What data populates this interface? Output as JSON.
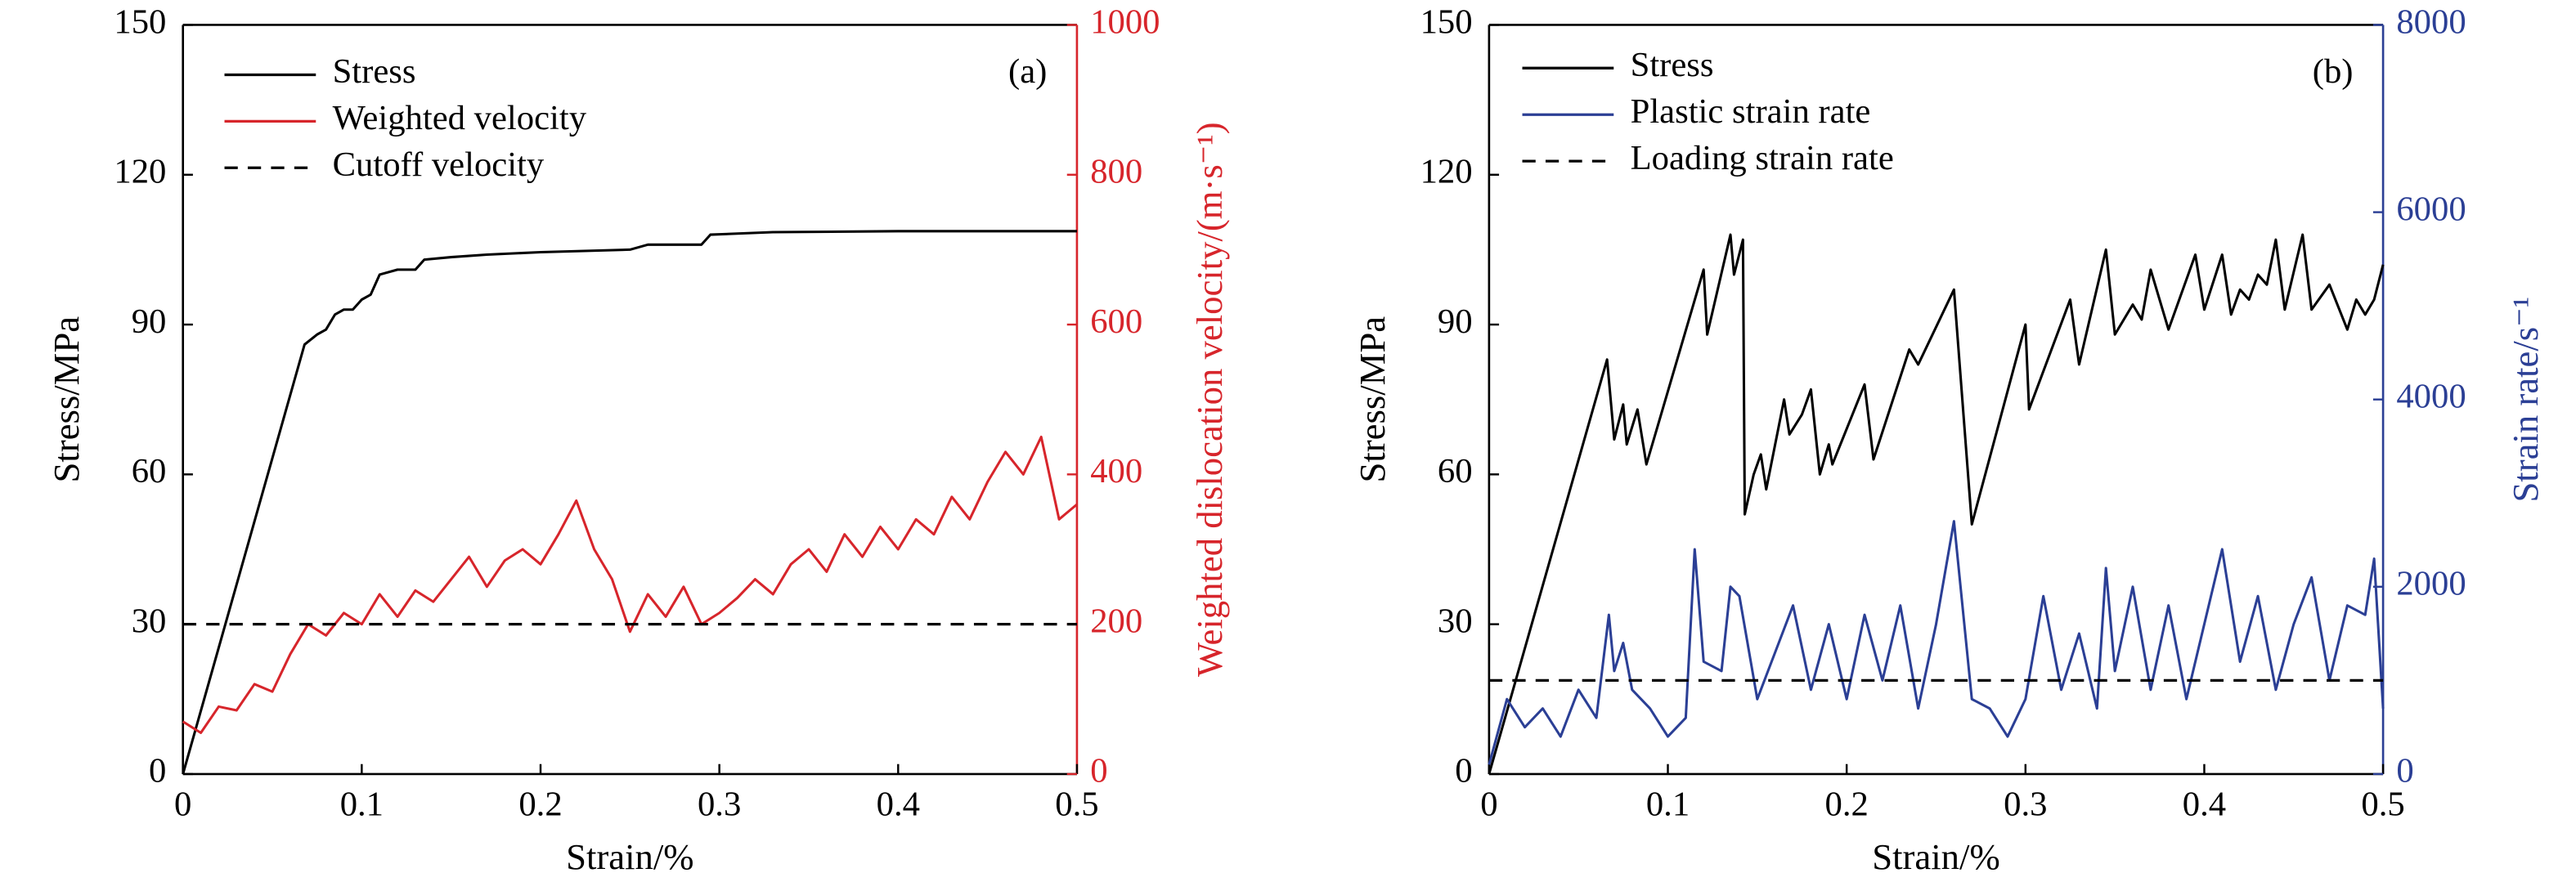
{
  "chart_data": [
    {
      "type": "line",
      "panel": "(a)",
      "xlabel": "Strain/%",
      "ylabel": "Stress/MPa",
      "y2label": "Weighted dislocation velocity/(m·s⁻¹)",
      "y2color": "#d7252b",
      "xlim": [
        0,
        0.5
      ],
      "xticks": [
        0,
        0.1,
        0.2,
        0.3,
        0.4,
        0.5
      ],
      "ylim": [
        0,
        150
      ],
      "yticks": [
        0,
        30,
        60,
        90,
        120,
        150
      ],
      "y2lim": [
        0,
        1000
      ],
      "y2ticks": [
        0,
        200,
        400,
        600,
        800,
        1000
      ],
      "legend": "upper left",
      "series": [
        {
          "name": "Stress",
          "color": "#000000",
          "dash": false,
          "x": [
            0,
            0.068,
            0.075,
            0.08,
            0.085,
            0.09,
            0.095,
            0.1,
            0.105,
            0.11,
            0.12,
            0.13,
            0.135,
            0.15,
            0.17,
            0.2,
            0.25,
            0.26,
            0.29,
            0.295,
            0.33,
            0.4,
            0.5
          ],
          "values": [
            0,
            86,
            88,
            89,
            92,
            93,
            93,
            95,
            96,
            100,
            101,
            101,
            103,
            103.5,
            104,
            104.5,
            105,
            106,
            106,
            108,
            108.5,
            108.7,
            108.7
          ]
        },
        {
          "name": "Weighted velocity",
          "color": "#d7252b",
          "dash": false,
          "axis": "y2",
          "x": [
            0,
            0.01,
            0.02,
            0.03,
            0.04,
            0.05,
            0.06,
            0.07,
            0.08,
            0.09,
            0.1,
            0.11,
            0.12,
            0.13,
            0.14,
            0.15,
            0.16,
            0.17,
            0.18,
            0.19,
            0.2,
            0.21,
            0.22,
            0.23,
            0.24,
            0.25,
            0.26,
            0.27,
            0.28,
            0.29,
            0.3,
            0.31,
            0.32,
            0.33,
            0.34,
            0.35,
            0.36,
            0.37,
            0.38,
            0.39,
            0.4,
            0.41,
            0.42,
            0.43,
            0.44,
            0.45,
            0.46,
            0.47,
            0.48,
            0.49,
            0.5
          ],
          "values": [
            70,
            55,
            90,
            85,
            120,
            110,
            160,
            200,
            185,
            215,
            200,
            240,
            210,
            245,
            230,
            260,
            290,
            250,
            285,
            300,
            280,
            320,
            365,
            300,
            260,
            190,
            240,
            210,
            250,
            200,
            215,
            235,
            260,
            240,
            280,
            300,
            270,
            320,
            290,
            330,
            300,
            340,
            320,
            370,
            340,
            390,
            430,
            400,
            450,
            340,
            360
          ]
        },
        {
          "name": "Cutoff velocity",
          "color": "#000000",
          "dash": true,
          "axis": "y2",
          "x": [
            0,
            0.5
          ],
          "values": [
            200,
            200
          ]
        }
      ]
    },
    {
      "type": "line",
      "panel": "(b)",
      "xlabel": "Strain/%",
      "ylabel": "Stress/MPa",
      "y2label": "Strain rate/s⁻¹",
      "y2color": "#2b3f95",
      "xlim": [
        0,
        0.5
      ],
      "xticks": [
        0,
        0.1,
        0.2,
        0.3,
        0.4,
        0.5
      ],
      "ylim": [
        0,
        150
      ],
      "yticks": [
        0,
        30,
        60,
        90,
        120,
        150
      ],
      "y2lim": [
        0,
        8000
      ],
      "y2ticks": [
        0,
        2000,
        4000,
        6000,
        8000
      ],
      "legend": "upper left",
      "series": [
        {
          "name": "Stress",
          "color": "#000000",
          "dash": false,
          "x": [
            0,
            0.066,
            0.07,
            0.075,
            0.077,
            0.083,
            0.088,
            0.12,
            0.122,
            0.135,
            0.137,
            0.142,
            0.143,
            0.148,
            0.152,
            0.155,
            0.165,
            0.168,
            0.175,
            0.18,
            0.185,
            0.19,
            0.192,
            0.21,
            0.215,
            0.235,
            0.24,
            0.26,
            0.27,
            0.3,
            0.302,
            0.325,
            0.33,
            0.345,
            0.35,
            0.36,
            0.365,
            0.37,
            0.38,
            0.395,
            0.4,
            0.41,
            0.415,
            0.42,
            0.425,
            0.43,
            0.435,
            0.44,
            0.445,
            0.455,
            0.46,
            0.47,
            0.48,
            0.485,
            0.49,
            0.495,
            0.5
          ],
          "values": [
            0,
            83,
            67,
            74,
            66,
            73,
            62,
            101,
            88,
            108,
            100,
            107,
            52,
            60,
            64,
            57,
            75,
            68,
            72,
            77,
            60,
            66,
            62,
            78,
            63,
            85,
            82,
            97,
            50,
            90,
            73,
            95,
            82,
            105,
            88,
            94,
            91,
            101,
            89,
            104,
            93,
            104,
            92,
            97,
            95,
            100,
            98,
            107,
            93,
            108,
            93,
            98,
            89,
            95,
            92,
            95,
            102
          ]
        },
        {
          "name": "Plastic strain rate",
          "color": "#2b3f95",
          "dash": false,
          "axis": "y2",
          "x": [
            0,
            0.01,
            0.02,
            0.03,
            0.04,
            0.05,
            0.06,
            0.067,
            0.07,
            0.075,
            0.08,
            0.09,
            0.1,
            0.11,
            0.115,
            0.12,
            0.13,
            0.135,
            0.14,
            0.15,
            0.16,
            0.17,
            0.18,
            0.19,
            0.2,
            0.21,
            0.22,
            0.23,
            0.24,
            0.25,
            0.26,
            0.27,
            0.28,
            0.29,
            0.3,
            0.31,
            0.32,
            0.33,
            0.34,
            0.345,
            0.35,
            0.36,
            0.37,
            0.38,
            0.39,
            0.4,
            0.41,
            0.42,
            0.43,
            0.44,
            0.45,
            0.46,
            0.47,
            0.48,
            0.49,
            0.495,
            0.5
          ],
          "values": [
            100,
            800,
            500,
            700,
            400,
            900,
            600,
            1700,
            1100,
            1400,
            900,
            700,
            400,
            600,
            2400,
            1200,
            1100,
            2000,
            1900,
            800,
            1300,
            1800,
            900,
            1600,
            800,
            1700,
            1000,
            1800,
            700,
            1600,
            2700,
            800,
            700,
            400,
            800,
            1900,
            900,
            1500,
            700,
            2200,
            1100,
            2000,
            900,
            1800,
            800,
            1600,
            2400,
            1200,
            1900,
            900,
            1600,
            2100,
            1000,
            1800,
            1700,
            2300,
            700
          ]
        },
        {
          "name": "Loading strain rate",
          "color": "#000000",
          "dash": true,
          "axis": "y2",
          "x": [
            0,
            0.5
          ],
          "values": [
            1000,
            1000
          ]
        }
      ]
    }
  ]
}
